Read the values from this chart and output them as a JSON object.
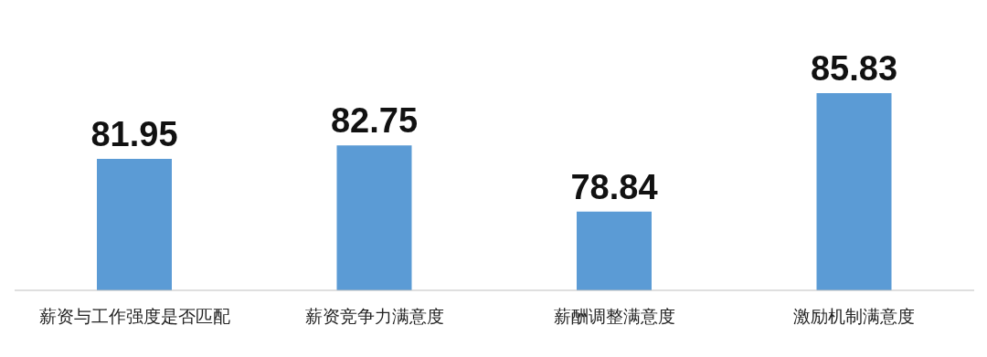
{
  "chart_data": {
    "type": "bar",
    "categories": [
      "薪资与工作强度是否匹配",
      "薪资竞争力满意度",
      "薪酬调整满意度",
      "激励机制满意度"
    ],
    "values": [
      81.95,
      82.75,
      78.84,
      85.83
    ],
    "color": "#5b9bd5",
    "ylim": [
      74.2,
      85.83
    ],
    "data_labels": true,
    "grid": false,
    "legend": false
  }
}
